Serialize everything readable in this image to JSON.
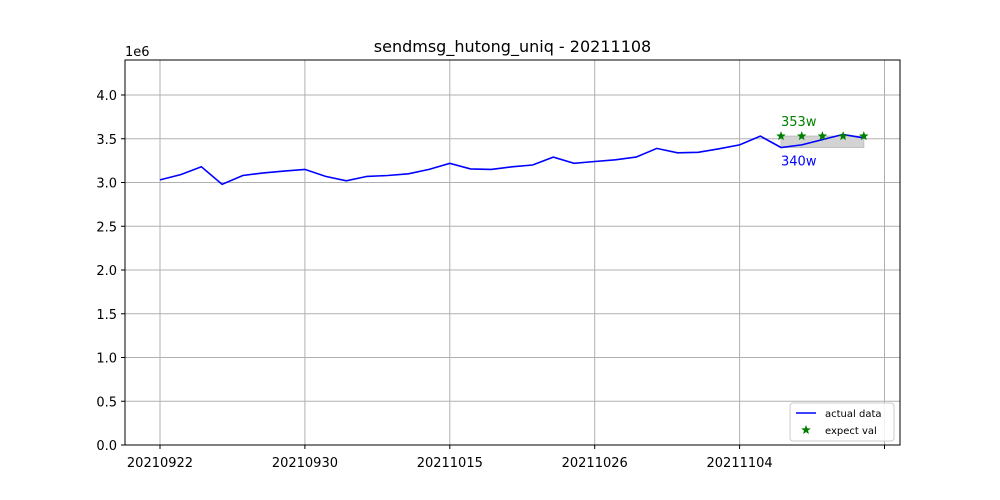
{
  "chart_data": {
    "type": "line",
    "title": "sendmsg_hutong_uniq - 20211108",
    "y_offset_label": "1e6",
    "xlabel": "",
    "ylabel": "",
    "ylim": [
      0,
      4400000
    ],
    "grid": true,
    "legend_position": "lower-right",
    "x_tick_labels": [
      "20210922",
      "20210930",
      "20211015",
      "20211026",
      "20211104",
      ""
    ],
    "y_tick_labels": [
      "0.0",
      "0.5",
      "1.0",
      "1.5",
      "2.0",
      "2.5",
      "3.0",
      "3.5",
      "4.0"
    ],
    "y_tick_values": [
      0,
      500000,
      1000000,
      1500000,
      2000000,
      2500000,
      3000000,
      3500000,
      4000000
    ],
    "colors": {
      "actual": "#0000ff",
      "expect": "#008000",
      "band": "#d3d3d3",
      "grid": "#b0b0b0"
    },
    "series": [
      {
        "name": "actual data",
        "kind": "line",
        "values": [
          3030000,
          3090000,
          3180000,
          2980000,
          3080000,
          3110000,
          3130000,
          3150000,
          3070000,
          3020000,
          3070000,
          3080000,
          3100000,
          3150000,
          3220000,
          3155000,
          3150000,
          3180000,
          3200000,
          3290000,
          3220000,
          3240000,
          3260000,
          3290000,
          3390000,
          3340000,
          3345000,
          3385000,
          3430000,
          3530000,
          3400000,
          3430000,
          3490000,
          3550000,
          3510000
        ]
      },
      {
        "name": "expect val",
        "kind": "scatter",
        "x_index": [
          30,
          31,
          32,
          33,
          34
        ],
        "values": [
          3530000,
          3530000,
          3530000,
          3530000,
          3530000
        ]
      }
    ],
    "band": {
      "x_index": [
        30,
        34
      ],
      "low": 3400000,
      "high": 3530000
    },
    "annotations": [
      {
        "text": "353w",
        "color": "#008000",
        "x_index": 30,
        "y": 3530000
      },
      {
        "text": "340w",
        "color": "#0000ff",
        "x_index": 30,
        "y": 3400000
      }
    ],
    "legend": [
      "actual data",
      "expect val"
    ]
  }
}
